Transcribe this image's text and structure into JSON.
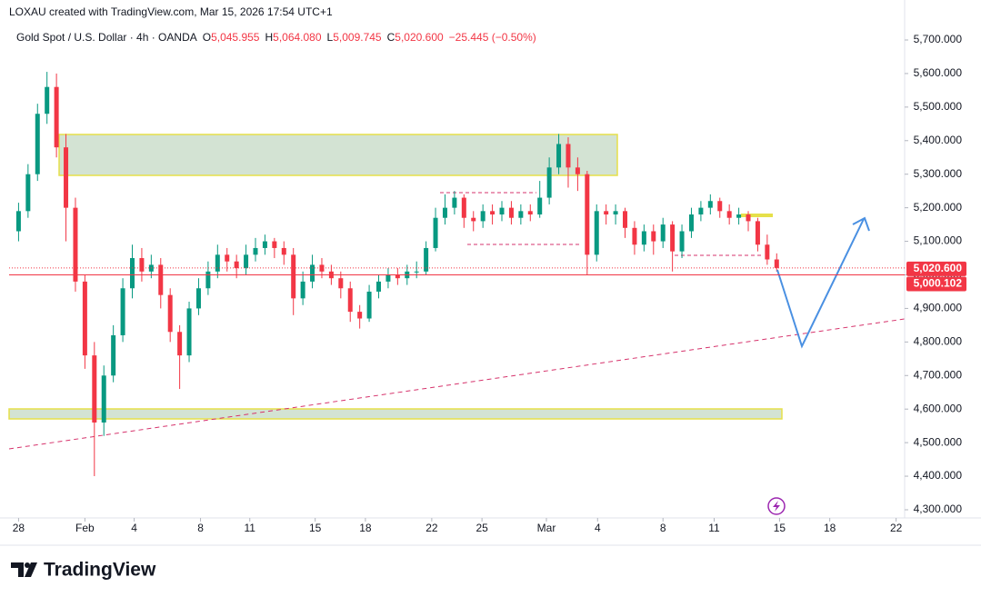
{
  "chart_data": {
    "type": "candlestick",
    "credit": "LOXAU created with TradingView.com, Mar 15, 2026 17:54 UTC+1",
    "title": "Gold Spot / U.S. Dollar · 4h · OANDA",
    "legend_values": [
      {
        "key": "O",
        "label": "5,045.955"
      },
      {
        "key": "H",
        "label": "5,064.080"
      },
      {
        "key": "L",
        "label": "5,009.745"
      },
      {
        "key": "C",
        "label": "5,020.600"
      }
    ],
    "change": "−25.445 (−0.50%)",
    "brand": "TradingView",
    "up_color": "#089981",
    "down_color": "#f23645",
    "open": [
      5130,
      5190,
      5300,
      5480,
      5560,
      5380,
      5200,
      4980,
      4760,
      4560,
      4700,
      4820,
      4960,
      5050,
      5010,
      5030,
      4940,
      4830,
      4760,
      4900,
      4960,
      5010,
      5060,
      5040,
      5020,
      5060,
      5080,
      5100,
      5080,
      5060,
      4930,
      4980,
      5030,
      5010,
      4990,
      4960,
      4890,
      4870,
      4950,
      4980,
      5000,
      4990,
      5010,
      5010,
      5080,
      5170,
      5200,
      5230,
      5170,
      5160,
      5190,
      5180,
      5200,
      5170,
      5190,
      5180,
      5230,
      5320,
      5390,
      5320,
      5300,
      5060,
      5190,
      5180,
      5190,
      5140,
      5090,
      5130,
      5100,
      5150,
      5070,
      5130,
      5180,
      5200,
      5220,
      5190,
      5170,
      5180,
      5160,
      5090,
      5045.955
    ],
    "high": [
      5215,
      5330,
      5510,
      5605,
      5600,
      5420,
      5230,
      5000,
      4800,
      4730,
      4850,
      4990,
      5090,
      5080,
      5060,
      5050,
      4960,
      4850,
      4920,
      4990,
      5040,
      5090,
      5080,
      5060,
      5090,
      5110,
      5120,
      5110,
      5100,
      5080,
      5010,
      5060,
      5050,
      5030,
      5010,
      4980,
      4910,
      4970,
      5000,
      5020,
      5020,
      5030,
      5040,
      5100,
      5200,
      5240,
      5250,
      5240,
      5190,
      5210,
      5210,
      5220,
      5220,
      5210,
      5210,
      5280,
      5350,
      5420,
      5410,
      5350,
      5310,
      5210,
      5210,
      5210,
      5200,
      5160,
      5150,
      5150,
      5170,
      5160,
      5150,
      5200,
      5220,
      5240,
      5230,
      5210,
      5200,
      5190,
      5170,
      5120,
      5064.08
    ],
    "low": [
      5100,
      5170,
      5280,
      5450,
      5350,
      5100,
      4950,
      4720,
      4400,
      4520,
      4680,
      4800,
      4930,
      4980,
      4990,
      4900,
      4800,
      4660,
      4740,
      4880,
      4940,
      4990,
      5010,
      4990,
      5000,
      5040,
      5060,
      5050,
      5030,
      4880,
      4910,
      4960,
      4990,
      4970,
      4930,
      4860,
      4840,
      4860,
      4930,
      4960,
      4970,
      4970,
      4990,
      5000,
      5070,
      5150,
      5180,
      5140,
      5130,
      5140,
      5150,
      5160,
      5150,
      5150,
      5160,
      5170,
      5210,
      5300,
      5260,
      5250,
      5000,
      5040,
      5150,
      5150,
      5110,
      5060,
      5070,
      5060,
      5080,
      5010,
      5050,
      5110,
      5160,
      5180,
      5170,
      5150,
      5150,
      5130,
      5070,
      5030,
      5009.745
    ],
    "close": [
      5190,
      5300,
      5480,
      5560,
      5380,
      5200,
      4980,
      4760,
      4560,
      4700,
      4820,
      4960,
      5050,
      5010,
      5030,
      4940,
      4830,
      4760,
      4900,
      4960,
      5010,
      5060,
      5040,
      5020,
      5060,
      5080,
      5100,
      5080,
      5060,
      4930,
      4980,
      5030,
      5010,
      4990,
      4960,
      4890,
      4870,
      4950,
      4980,
      5000,
      4990,
      5010,
      5010,
      5080,
      5170,
      5200,
      5230,
      5170,
      5160,
      5190,
      5180,
      5200,
      5170,
      5190,
      5180,
      5230,
      5320,
      5390,
      5320,
      5300,
      5060,
      5190,
      5180,
      5190,
      5140,
      5090,
      5130,
      5100,
      5150,
      5070,
      5130,
      5180,
      5200,
      5220,
      5190,
      5170,
      5180,
      5160,
      5090,
      5046,
      5020.6
    ],
    "xlim": [
      -1,
      93.5
    ],
    "xticks": [
      {
        "value": 0,
        "label": "28"
      },
      {
        "value": 7,
        "label": "Feb"
      },
      {
        "value": 12.2,
        "label": "4"
      },
      {
        "value": 19.2,
        "label": "8"
      },
      {
        "value": 24.4,
        "label": "11"
      },
      {
        "value": 31.3,
        "label": "15"
      },
      {
        "value": 36.6,
        "label": "18"
      },
      {
        "value": 43.6,
        "label": "22"
      },
      {
        "value": 48.9,
        "label": "25"
      },
      {
        "value": 55.7,
        "label": "Mar"
      },
      {
        "value": 61.1,
        "label": "4"
      },
      {
        "value": 68,
        "label": "8"
      },
      {
        "value": 73.4,
        "label": "11"
      },
      {
        "value": 80.3,
        "label": "15"
      },
      {
        "value": 85.6,
        "label": "18"
      },
      {
        "value": 92.6,
        "label": "22"
      }
    ],
    "ylim": [
      4275.6,
      5805.6
    ],
    "yticks": [
      {
        "value": 4300,
        "label": "4,300.000"
      },
      {
        "value": 4400,
        "label": "4,400.000"
      },
      {
        "value": 4500,
        "label": "4,500.000"
      },
      {
        "value": 4600,
        "label": "4,600.000"
      },
      {
        "value": 4700,
        "label": "4,700.000"
      },
      {
        "value": 4800,
        "label": "4,800.000"
      },
      {
        "value": 4900,
        "label": "4,900.000"
      },
      {
        "value": 5000,
        "label": "5,000.000"
      },
      {
        "value": 5100,
        "label": "5,100.000"
      },
      {
        "value": 5200,
        "label": "5,200.000"
      },
      {
        "value": 5300,
        "label": "5,300.000"
      },
      {
        "value": 5400,
        "label": "5,400.000"
      },
      {
        "value": 5500,
        "label": "5,500.000"
      },
      {
        "value": 5600,
        "label": "5,600.000"
      },
      {
        "value": 5700,
        "label": "5,700.000"
      }
    ],
    "price_labels": [
      {
        "value": 5020.6,
        "label": "5,020.600"
      },
      {
        "value": 5000.102,
        "label": "5,000.102"
      }
    ],
    "grid": false
  }
}
